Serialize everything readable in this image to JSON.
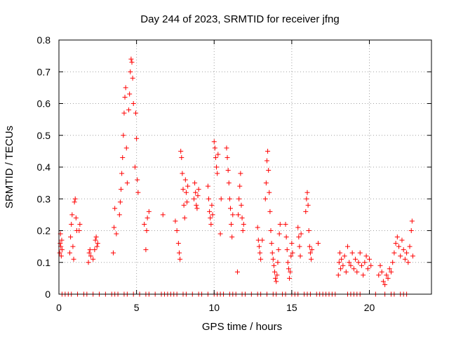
{
  "chart_data": {
    "type": "scatter",
    "title": "Day 244 of 2023, SRMTID for receiver jfng",
    "xlabel": "GPS time / hours",
    "ylabel": "SRMTID / TECUs",
    "xlim": [
      0,
      24
    ],
    "ylim": [
      0,
      0.8
    ],
    "xticks": [
      "0",
      "5",
      "10",
      "15",
      "20"
    ],
    "xtick_values": [
      0,
      5,
      10,
      15,
      20
    ],
    "yticks": [
      "0",
      "0.1",
      "0.2",
      "0.3",
      "0.4",
      "0.5",
      "0.6",
      "0.7",
      "0.8"
    ],
    "ytick_values": [
      0,
      0.1,
      0.2,
      0.3,
      0.4,
      0.5,
      0.6,
      0.7,
      0.8
    ],
    "grid": true,
    "marker": "+",
    "color": "#ff0000",
    "series": [
      {
        "name": "SRMTID",
        "points": [
          [
            0.05,
            0.13
          ],
          [
            0.08,
            0.16
          ],
          [
            0.1,
            0.19
          ],
          [
            0.12,
            0.15
          ],
          [
            0.15,
            0.12
          ],
          [
            0.18,
            0.17
          ],
          [
            0.2,
            0.14
          ],
          [
            0.7,
            0.13
          ],
          [
            0.75,
            0.18
          ],
          [
            0.8,
            0.22
          ],
          [
            0.85,
            0.25
          ],
          [
            0.9,
            0.15
          ],
          [
            0.95,
            0.11
          ],
          [
            1.0,
            0.29
          ],
          [
            1.05,
            0.3
          ],
          [
            1.1,
            0.24
          ],
          [
            1.15,
            0.2
          ],
          [
            1.3,
            0.2
          ],
          [
            1.35,
            0.22
          ],
          [
            1.9,
            0.1
          ],
          [
            1.95,
            0.13
          ],
          [
            2.0,
            0.14
          ],
          [
            2.05,
            0.12
          ],
          [
            2.2,
            0.11
          ],
          [
            2.3,
            0.14
          ],
          [
            2.35,
            0.17
          ],
          [
            2.4,
            0.18
          ],
          [
            2.45,
            0.15
          ],
          [
            2.5,
            0.16
          ],
          [
            3.5,
            0.13
          ],
          [
            3.55,
            0.21
          ],
          [
            3.6,
            0.27
          ],
          [
            3.7,
            0.19
          ],
          [
            3.9,
            0.25
          ],
          [
            3.95,
            0.29
          ],
          [
            4.0,
            0.33
          ],
          [
            4.05,
            0.38
          ],
          [
            4.1,
            0.43
          ],
          [
            4.15,
            0.5
          ],
          [
            4.2,
            0.57
          ],
          [
            4.25,
            0.62
          ],
          [
            4.3,
            0.65
          ],
          [
            4.35,
            0.46
          ],
          [
            4.4,
            0.35
          ],
          [
            4.5,
            0.58
          ],
          [
            4.55,
            0.63
          ],
          [
            4.6,
            0.7
          ],
          [
            4.65,
            0.74
          ],
          [
            4.7,
            0.73
          ],
          [
            4.75,
            0.68
          ],
          [
            4.8,
            0.6
          ],
          [
            4.9,
            0.4
          ],
          [
            4.95,
            0.57
          ],
          [
            5.0,
            0.49
          ],
          [
            5.05,
            0.36
          ],
          [
            5.1,
            0.32
          ],
          [
            5.5,
            0.22
          ],
          [
            5.6,
            0.14
          ],
          [
            5.65,
            0.2
          ],
          [
            5.7,
            0.24
          ],
          [
            5.8,
            0.26
          ],
          [
            6.7,
            0.25
          ],
          [
            7.5,
            0.23
          ],
          [
            7.6,
            0.2
          ],
          [
            7.7,
            0.16
          ],
          [
            7.75,
            0.13
          ],
          [
            7.8,
            0.11
          ],
          [
            7.85,
            0.45
          ],
          [
            7.9,
            0.43
          ],
          [
            7.95,
            0.38
          ],
          [
            8.0,
            0.33
          ],
          [
            8.05,
            0.28
          ],
          [
            8.1,
            0.24
          ],
          [
            8.15,
            0.36
          ],
          [
            8.2,
            0.32
          ],
          [
            8.25,
            0.29
          ],
          [
            8.3,
            0.34
          ],
          [
            8.7,
            0.3
          ],
          [
            8.75,
            0.35
          ],
          [
            8.8,
            0.32
          ],
          [
            8.85,
            0.28
          ],
          [
            8.9,
            0.27
          ],
          [
            8.95,
            0.31
          ],
          [
            9.0,
            0.33
          ],
          [
            9.6,
            0.34
          ],
          [
            9.65,
            0.3
          ],
          [
            9.7,
            0.26
          ],
          [
            9.75,
            0.24
          ],
          [
            9.8,
            0.22
          ],
          [
            9.85,
            0.28
          ],
          [
            9.9,
            0.25
          ],
          [
            10.0,
            0.48
          ],
          [
            10.05,
            0.46
          ],
          [
            10.1,
            0.43
          ],
          [
            10.15,
            0.4
          ],
          [
            10.2,
            0.38
          ],
          [
            10.25,
            0.44
          ],
          [
            10.4,
            0.19
          ],
          [
            10.45,
            0.3
          ],
          [
            10.8,
            0.46
          ],
          [
            10.85,
            0.43
          ],
          [
            10.9,
            0.39
          ],
          [
            10.95,
            0.35
          ],
          [
            11.0,
            0.3
          ],
          [
            11.05,
            0.27
          ],
          [
            11.1,
            0.22
          ],
          [
            11.15,
            0.18
          ],
          [
            11.2,
            0.25
          ],
          [
            11.5,
            0.07
          ],
          [
            11.55,
            0.25
          ],
          [
            11.6,
            0.3
          ],
          [
            11.65,
            0.34
          ],
          [
            11.7,
            0.38
          ],
          [
            11.75,
            0.28
          ],
          [
            11.8,
            0.24
          ],
          [
            11.85,
            0.2
          ],
          [
            11.9,
            0.22
          ],
          [
            12.8,
            0.21
          ],
          [
            12.85,
            0.17
          ],
          [
            12.9,
            0.15
          ],
          [
            12.95,
            0.13
          ],
          [
            13.0,
            0.11
          ],
          [
            13.1,
            0.17
          ],
          [
            13.3,
            0.3
          ],
          [
            13.35,
            0.35
          ],
          [
            13.4,
            0.42
          ],
          [
            13.45,
            0.45
          ],
          [
            13.5,
            0.39
          ],
          [
            13.55,
            0.32
          ],
          [
            13.6,
            0.26
          ],
          [
            13.65,
            0.2
          ],
          [
            13.7,
            0.16
          ],
          [
            13.75,
            0.13
          ],
          [
            13.8,
            0.11
          ],
          [
            13.85,
            0.09
          ],
          [
            13.9,
            0.07
          ],
          [
            13.95,
            0.05
          ],
          [
            14.0,
            0.04
          ],
          [
            14.05,
            0.06
          ],
          [
            14.1,
            0.1
          ],
          [
            14.15,
            0.14
          ],
          [
            14.2,
            0.19
          ],
          [
            14.25,
            0.22
          ],
          [
            14.6,
            0.22
          ],
          [
            14.65,
            0.18
          ],
          [
            14.7,
            0.14
          ],
          [
            14.75,
            0.1
          ],
          [
            14.8,
            0.08
          ],
          [
            14.85,
            0.05
          ],
          [
            14.9,
            0.07
          ],
          [
            14.95,
            0.12
          ],
          [
            15.0,
            0.16
          ],
          [
            15.05,
            0.13
          ],
          [
            15.4,
            0.21
          ],
          [
            15.45,
            0.18
          ],
          [
            15.5,
            0.15
          ],
          [
            15.55,
            0.12
          ],
          [
            15.6,
            0.19
          ],
          [
            15.9,
            0.26
          ],
          [
            15.95,
            0.3
          ],
          [
            16.0,
            0.32
          ],
          [
            16.05,
            0.28
          ],
          [
            16.1,
            0.2
          ],
          [
            16.15,
            0.15
          ],
          [
            16.2,
            0.13
          ],
          [
            16.25,
            0.11
          ],
          [
            16.3,
            0.14
          ],
          [
            16.7,
            0.16
          ],
          [
            18.0,
            0.06
          ],
          [
            18.05,
            0.1
          ],
          [
            18.1,
            0.13
          ],
          [
            18.15,
            0.08
          ],
          [
            18.2,
            0.11
          ],
          [
            18.3,
            0.09
          ],
          [
            18.4,
            0.12
          ],
          [
            18.5,
            0.07
          ],
          [
            18.6,
            0.15
          ],
          [
            18.7,
            0.1
          ],
          [
            18.8,
            0.09
          ],
          [
            18.9,
            0.13
          ],
          [
            19.0,
            0.08
          ],
          [
            19.1,
            0.11
          ],
          [
            19.2,
            0.07
          ],
          [
            19.3,
            0.1
          ],
          [
            19.4,
            0.13
          ],
          [
            19.5,
            0.09
          ],
          [
            19.6,
            0.06
          ],
          [
            19.7,
            0.1
          ],
          [
            19.8,
            0.12
          ],
          [
            19.9,
            0.08
          ],
          [
            20.0,
            0.11
          ],
          [
            20.1,
            0.09
          ],
          [
            20.6,
            0.06
          ],
          [
            20.7,
            0.09
          ],
          [
            20.8,
            0.07
          ],
          [
            20.9,
            0.04
          ],
          [
            21.0,
            0.03
          ],
          [
            21.1,
            0.06
          ],
          [
            21.2,
            0.05
          ],
          [
            21.3,
            0.08
          ],
          [
            21.4,
            0.07
          ],
          [
            21.5,
            0.1
          ],
          [
            21.6,
            0.13
          ],
          [
            21.7,
            0.16
          ],
          [
            21.8,
            0.18
          ],
          [
            21.9,
            0.15
          ],
          [
            22.0,
            0.12
          ],
          [
            22.1,
            0.17
          ],
          [
            22.2,
            0.14
          ],
          [
            22.3,
            0.11
          ],
          [
            22.4,
            0.13
          ],
          [
            22.5,
            0.1
          ],
          [
            22.6,
            0.15
          ],
          [
            22.7,
            0.2
          ],
          [
            22.75,
            0.23
          ],
          [
            22.8,
            0.12
          ]
        ],
        "zero_points_x": [
          0.2,
          0.4,
          0.6,
          0.8,
          1.2,
          1.6,
          1.8,
          2.2,
          2.6,
          3.0,
          3.4,
          3.6,
          3.8,
          4.2,
          4.4,
          4.8,
          5.2,
          5.6,
          5.8,
          6.2,
          6.6,
          6.8,
          7.0,
          7.2,
          7.4,
          7.6,
          8.0,
          8.2,
          8.6,
          9.0,
          9.2,
          9.6,
          10.0,
          10.2,
          10.4,
          10.6,
          11.0,
          11.2,
          11.4,
          11.8,
          12.0,
          12.4,
          12.8,
          13.0,
          13.4,
          13.8,
          14.0,
          14.4,
          14.6,
          15.0,
          15.2,
          15.4,
          15.8,
          16.0,
          16.2,
          16.6,
          16.8,
          17.0,
          17.2,
          17.4,
          17.6,
          17.8,
          18.6,
          18.8,
          19.0,
          19.2,
          19.4,
          20.4,
          21.0,
          21.4,
          21.6,
          22.0,
          22.2,
          22.4
        ]
      }
    ]
  }
}
